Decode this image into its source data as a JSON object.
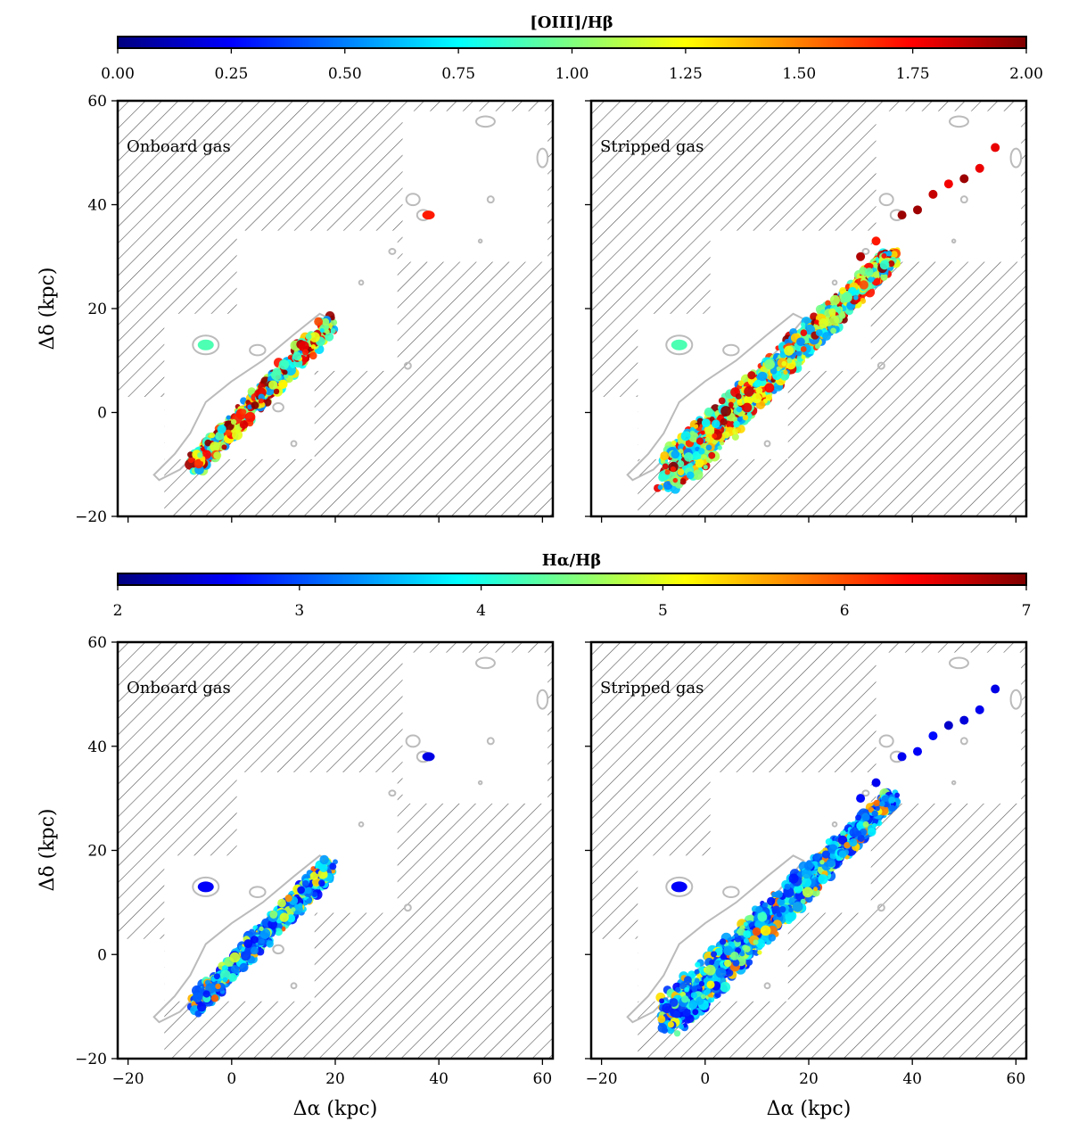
{
  "chart_data": [
    {
      "type": "heatmap",
      "title": "[OIII]/Hβ",
      "panels": [
        {
          "label": "Onboard gas",
          "x_axis_label": "",
          "y_axis_label": "Δδ (kpc)"
        },
        {
          "label": "Stripped gas",
          "x_axis_label": "",
          "y_axis_label": ""
        }
      ],
      "colorbar": {
        "label": "[OIII]/Hβ",
        "range": [
          0.0,
          2.0
        ],
        "ticks": [
          "0.00",
          "0.25",
          "0.50",
          "0.75",
          "1.00",
          "1.25",
          "1.50",
          "1.75",
          "2.00"
        ],
        "colormap": "jet"
      },
      "xlim": [
        -22,
        62
      ],
      "ylim": [
        -20,
        60
      ],
      "x_ticks": [
        "−20",
        "0",
        "20",
        "40",
        "60"
      ],
      "y_ticks": [
        "−20",
        "0",
        "20",
        "40",
        "60"
      ]
    },
    {
      "type": "heatmap",
      "title": "Hα/Hβ",
      "panels": [
        {
          "label": "Onboard gas",
          "x_axis_label": "Δα (kpc)",
          "y_axis_label": "Δδ (kpc)"
        },
        {
          "label": "Stripped gas",
          "x_axis_label": "Δα (kpc)",
          "y_axis_label": ""
        }
      ],
      "colorbar": {
        "label": "Hα/Hβ",
        "range": [
          2,
          7
        ],
        "ticks": [
          "2",
          "3",
          "4",
          "5",
          "6",
          "7"
        ],
        "colormap": "jet"
      },
      "xlim": [
        -22,
        62
      ],
      "ylim": [
        -20,
        60
      ],
      "x_ticks": [
        "−20",
        "0",
        "20",
        "40",
        "60"
      ],
      "y_ticks": [
        "−20",
        "0",
        "20",
        "40",
        "60"
      ]
    }
  ],
  "colors": {
    "jet": [
      "#00007f",
      "#0000ff",
      "#007fff",
      "#00ffff",
      "#7fff7f",
      "#ffff00",
      "#ff7f00",
      "#ff0000",
      "#7f0000"
    ],
    "hatch": "#555555",
    "contour": "#bbbbbb",
    "frame": "#000000"
  }
}
